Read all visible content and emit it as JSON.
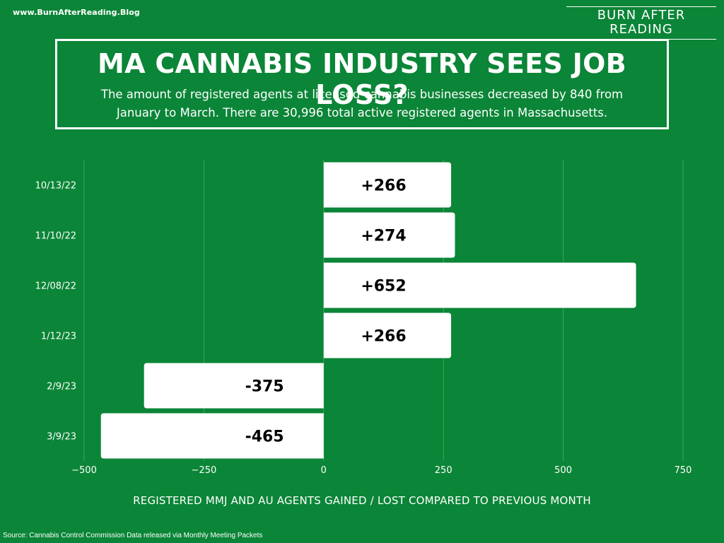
{
  "site_url": "www.BurnAfterReading.Blog",
  "brand": "BURN AFTER READING",
  "source": "Source: Cannabis Control Commission Data released via Monthly Meeting Packets",
  "colors": {
    "background": "#0b8537",
    "bar": "#ffffff",
    "bar_label": "#000000",
    "grid": "#3fa463"
  },
  "chart_data": {
    "type": "bar",
    "orientation": "horizontal",
    "title": "MA CANNABIS INDUSTRY SEES JOB LOSS?",
    "subtitle_lines": [
      "The amount of registered agents at licensed cannabis businesses decreased by 840 from",
      "January to March.  There are 30,996 total active registered agents in Massachusetts."
    ],
    "xlabel": "REGISTERED MMJ AND AU AGENTS GAINED / LOST COMPARED TO PREVIOUS MONTH",
    "ylabel": "",
    "categories": [
      "10/13/22",
      "11/10/22",
      "12/08/22",
      "1/12/23",
      "2/9/23",
      "3/9/23"
    ],
    "values": [
      266,
      274,
      652,
      266,
      -375,
      -465
    ],
    "data_labels": [
      "+266",
      "+274",
      "+652",
      "+266",
      "-375",
      "-465"
    ],
    "xlim": [
      -500,
      750
    ],
    "xticks": [
      -500,
      -250,
      0,
      250,
      500,
      750
    ],
    "xtick_labels": [
      "−500",
      "−250",
      "0",
      "250",
      "500",
      "750"
    ],
    "grid": "vertical",
    "legend": "none"
  }
}
